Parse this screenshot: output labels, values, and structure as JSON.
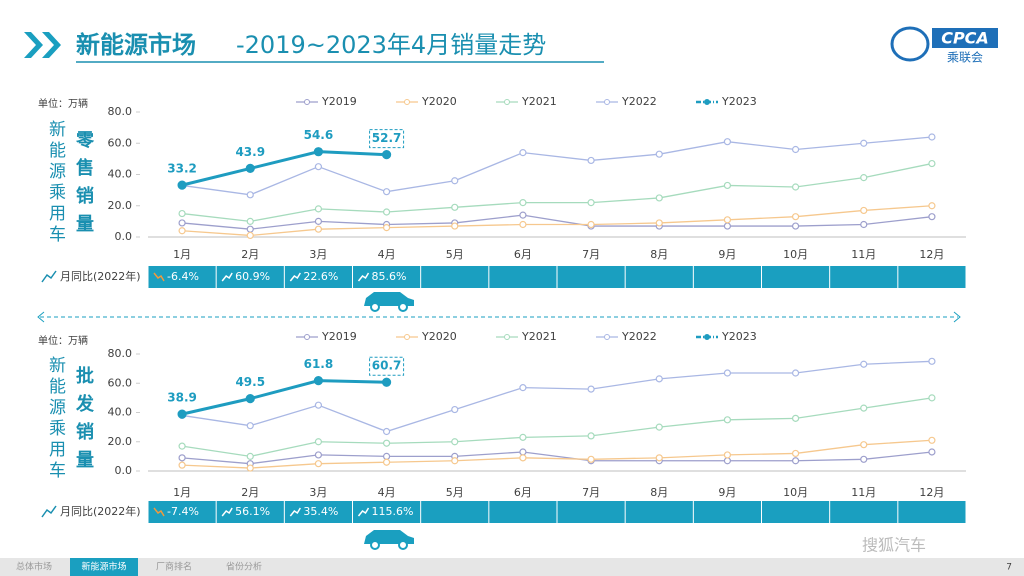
{
  "header": {
    "title_main": "新能源市场",
    "title_rest": "-2019~2023年4月销量走势",
    "logo": "CPCA",
    "logo_sub": "乘联会"
  },
  "chart_data": [
    {
      "type": "line",
      "unit": "单位：万辆",
      "side_label": "新能源乘用车",
      "metric_label": "零售销量",
      "categories": [
        "1月",
        "2月",
        "3月",
        "4月",
        "5月",
        "6月",
        "7月",
        "8月",
        "9月",
        "10月",
        "11月",
        "12月"
      ],
      "ylim": [
        0,
        80
      ],
      "yticks": [
        {
          "value": 0,
          "label": "0.0"
        },
        {
          "value": 20,
          "label": "20.0"
        },
        {
          "value": 40,
          "label": "40.0"
        },
        {
          "value": 60,
          "label": "60.0"
        },
        {
          "value": 80,
          "label": "80.0"
        }
      ],
      "grid": false,
      "legend": "top",
      "series": [
        {
          "name": "Y2019",
          "color": "#9d9fcc",
          "values": [
            9,
            5,
            10,
            8,
            9,
            14,
            7,
            7,
            7,
            7,
            8,
            13
          ]
        },
        {
          "name": "Y2020",
          "color": "#f6c88e",
          "values": [
            4,
            1,
            5,
            6,
            7,
            8,
            8,
            9,
            11,
            13,
            17,
            20
          ]
        },
        {
          "name": "Y2021",
          "color": "#a6dbbd",
          "values": [
            15,
            10,
            18,
            16,
            19,
            22,
            22,
            25,
            33,
            32,
            38,
            47
          ]
        },
        {
          "name": "Y2022",
          "color": "#a9b7e4",
          "values": [
            33,
            27,
            45,
            29,
            36,
            54,
            49,
            53,
            61,
            56,
            60,
            64
          ]
        },
        {
          "name": "Y2023",
          "color": "#1e9cc0",
          "values": [
            33.2,
            43.9,
            54.6,
            52.7,
            null,
            null,
            null,
            null,
            null,
            null,
            null,
            null
          ]
        }
      ],
      "yoy_label": "月同比(2022年)",
      "yoy_values": [
        "-6.4%",
        "60.9%",
        "22.6%",
        "85.6%"
      ]
    },
    {
      "type": "line",
      "unit": "单位：万辆",
      "side_label": "新能源乘用车",
      "metric_label": "批发销量",
      "categories": [
        "1月",
        "2月",
        "3月",
        "4月",
        "5月",
        "6月",
        "7月",
        "8月",
        "9月",
        "10月",
        "11月",
        "12月"
      ],
      "ylim": [
        0,
        80
      ],
      "yticks": [
        {
          "value": 0,
          "label": "0.0"
        },
        {
          "value": 20,
          "label": "20.0"
        },
        {
          "value": 40,
          "label": "40.0"
        },
        {
          "value": 60,
          "label": "60.0"
        },
        {
          "value": 80,
          "label": "80.0"
        }
      ],
      "grid": false,
      "legend": "top",
      "series": [
        {
          "name": "Y2019",
          "color": "#9d9fcc",
          "values": [
            9,
            5,
            11,
            10,
            10,
            13,
            7,
            7,
            7,
            7,
            8,
            13
          ]
        },
        {
          "name": "Y2020",
          "color": "#f6c88e",
          "values": [
            4,
            2,
            5,
            6,
            7,
            9,
            8,
            9,
            11,
            12,
            18,
            21
          ]
        },
        {
          "name": "Y2021",
          "color": "#a6dbbd",
          "values": [
            17,
            10,
            20,
            19,
            20,
            23,
            24,
            30,
            35,
            36,
            43,
            50
          ]
        },
        {
          "name": "Y2022",
          "color": "#a9b7e4",
          "values": [
            38,
            31,
            45,
            27,
            42,
            57,
            56,
            63,
            67,
            67,
            73,
            75
          ]
        },
        {
          "name": "Y2023",
          "color": "#1e9cc0",
          "values": [
            38.9,
            49.5,
            61.8,
            60.7,
            null,
            null,
            null,
            null,
            null,
            null,
            null,
            null
          ]
        }
      ],
      "yoy_label": "月同比(2022年)",
      "yoy_values": [
        "-7.4%",
        "56.1%",
        "35.4%",
        "115.6%"
      ]
    }
  ],
  "footer": {
    "tabs": [
      "总体市场",
      "新能源市场",
      "厂商排名",
      "省份分析"
    ],
    "active_tab": 1,
    "page": "7",
    "watermark": "搜狐汽车"
  }
}
